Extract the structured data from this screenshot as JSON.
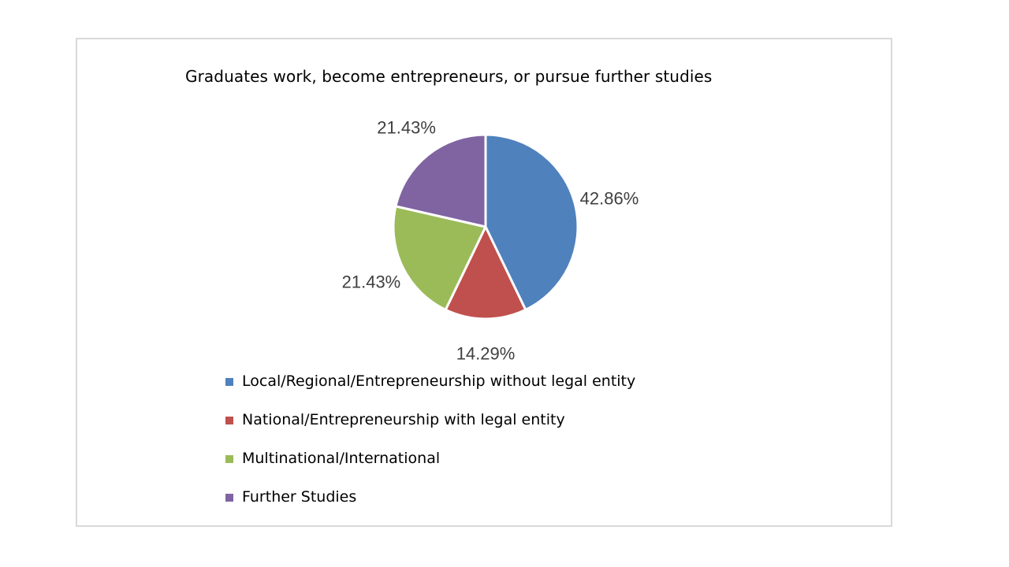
{
  "chart_data": {
    "type": "pie",
    "title": "Graduates work, become entrepreneurs, or pursue further studies",
    "categories": [
      "Local/Regional/Entrepreneurship without legal entity",
      "National/Entrepreneurship with legal entity",
      "Multinational/International",
      "Further Studies"
    ],
    "values": [
      42.86,
      14.29,
      21.43,
      21.43
    ],
    "data_labels": [
      "42.86%",
      "14.29%",
      "21.43%",
      "21.43%"
    ],
    "colors": [
      "#4f81bd",
      "#c0504d",
      "#9bbb59",
      "#8064a2"
    ],
    "legend_position": "bottom",
    "start_angle": "top",
    "direction": "clockwise"
  }
}
